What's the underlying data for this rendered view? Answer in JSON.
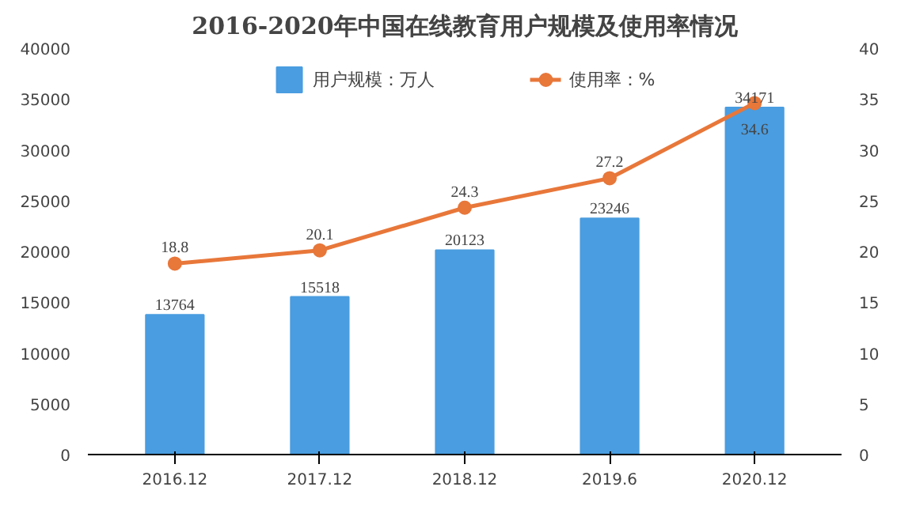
{
  "chart_data": {
    "type": "bar",
    "title": "2016-2020年中国在线教育用户规模及使用率情况",
    "categories": [
      "2016.12",
      "2017.12",
      "2018.12",
      "2019.6",
      "2020.12"
    ],
    "series": [
      {
        "name": "用户规模：万人",
        "color": "#4a9de0",
        "values": [
          13764,
          15518,
          20123,
          23246,
          34171
        ]
      },
      {
        "name": "使用率：%",
        "color": "#e8773a",
        "type": "line",
        "axis": "y2",
        "marker": "circle",
        "values": [
          18.8,
          20.1,
          24.3,
          27.2,
          34.6
        ]
      }
    ],
    "ylim": [
      0,
      40000
    ],
    "yticks": [
      0,
      5000,
      10000,
      15000,
      20000,
      25000,
      30000,
      35000,
      40000
    ],
    "y2lim": [
      0,
      40
    ],
    "y2ticks": [
      0,
      5,
      10,
      15,
      20,
      25,
      30,
      35,
      40
    ],
    "data_labels": true,
    "legend": "top",
    "grid": false
  }
}
